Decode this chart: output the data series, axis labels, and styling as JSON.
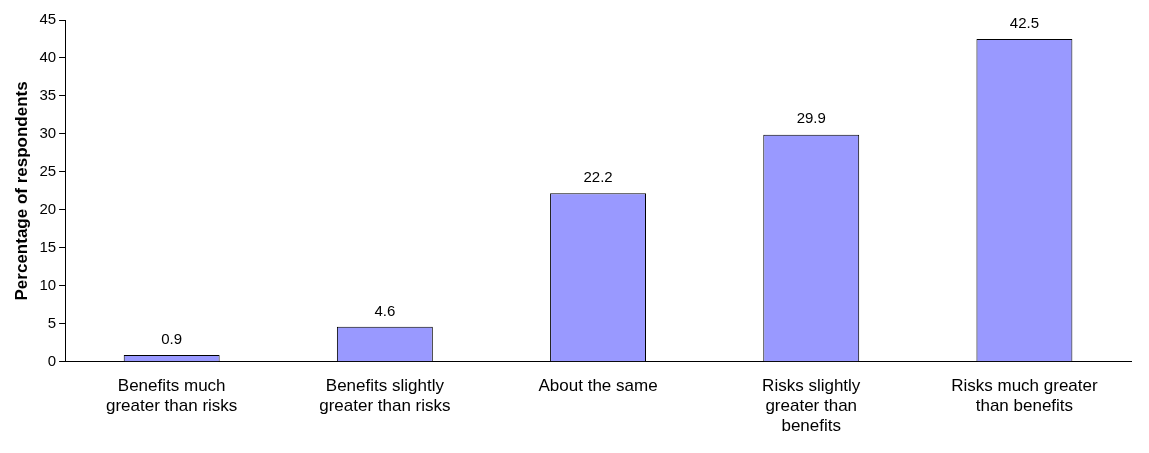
{
  "chart_data": {
    "type": "bar",
    "ylabel": "Percentage of respondents",
    "categories": [
      "Benefits much greater than risks",
      "Benefits slightly greater than risks",
      "About the same",
      "Risks slightly greater than benefits",
      "Risks much greater than benefits"
    ],
    "values": [
      0.9,
      4.6,
      22.2,
      29.9,
      42.5
    ],
    "color": "#9999ff",
    "ylim": [
      0,
      45
    ],
    "yticks": [
      0,
      5,
      10,
      15,
      20,
      25,
      30,
      35,
      40,
      45
    ],
    "grid": false,
    "legend": false,
    "data_labels": true
  }
}
